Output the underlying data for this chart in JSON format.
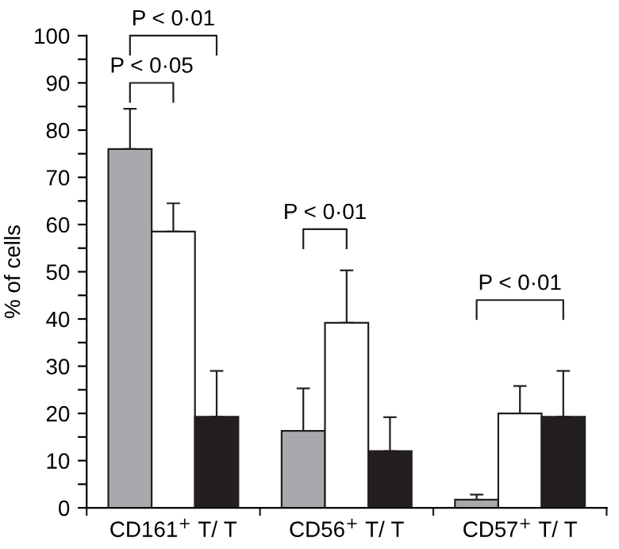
{
  "chart_data": {
    "type": "bar",
    "ylabel": "% of cells",
    "categories": [
      "CD161$^{+}$ T/ T",
      "CD56$^{+}$ T/ T",
      "CD57$^{+}$ T/ T"
    ],
    "series": [
      {
        "color": "#a7a9ac",
        "values": [
          76,
          16.3,
          1.7
        ],
        "errors": [
          [
            76,
            84.5
          ],
          [
            16.3,
            25.3
          ],
          [
            1.7,
            2.8
          ]
        ]
      },
      {
        "color": "#ffffff",
        "values": [
          58.5,
          39.2,
          20
        ],
        "errors": [
          [
            58.5,
            64.5
          ],
          [
            39.2,
            50.3
          ],
          [
            20,
            25.8
          ]
        ]
      },
      {
        "color": "#231f20",
        "values": [
          19.3,
          12,
          19.3
        ],
        "errors": [
          [
            19.3,
            29
          ],
          [
            12,
            19.2
          ],
          [
            19.3,
            29
          ]
        ]
      }
    ],
    "ylim": [
      0,
      100
    ],
    "yticks": [
      0,
      {
        "value": 5,
        "label": null
      },
      10,
      {
        "value": 15,
        "label": null
      },
      20,
      {
        "value": 25,
        "label": null
      },
      30,
      {
        "value": 35,
        "label": null
      },
      40,
      {
        "value": 45,
        "label": null
      },
      50,
      {
        "value": 55,
        "label": null
      },
      60,
      {
        "value": 65,
        "label": null
      },
      70,
      {
        "value": 75,
        "label": null
      },
      80,
      {
        "value": 85,
        "label": null
      },
      90,
      {
        "value": 95,
        "label": null
      },
      100
    ],
    "grid": false,
    "legend": false,
    "annotations": [
      "P < 0·01",
      "P < 0·05",
      "P < 0·01",
      "P < 0·01"
    ]
  }
}
